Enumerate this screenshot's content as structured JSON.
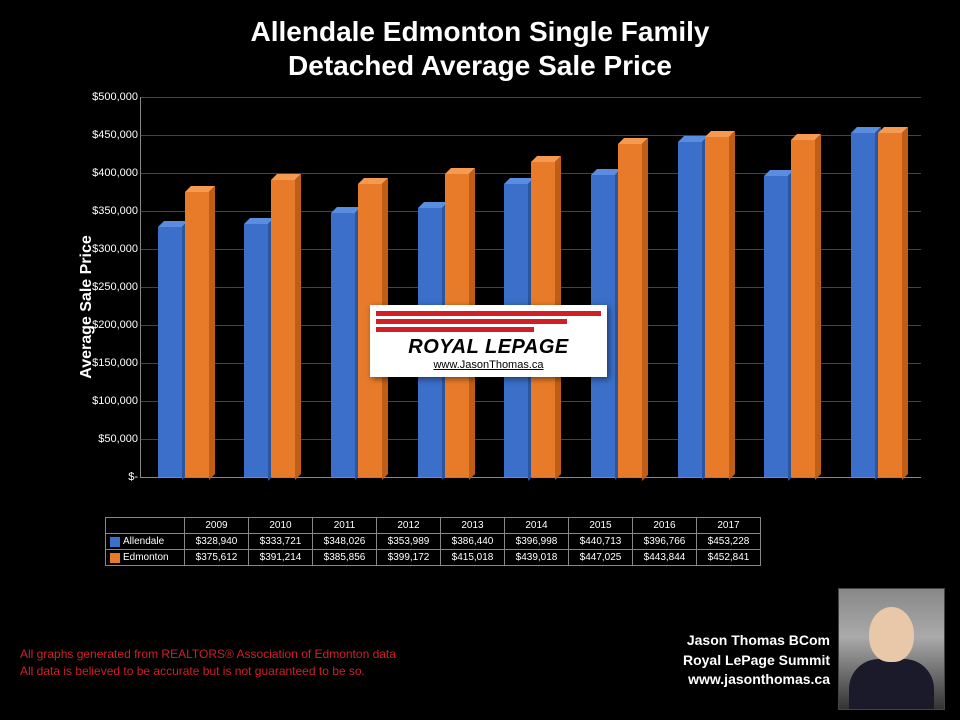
{
  "title_line1": "Allendale Edmonton Single Family",
  "title_line2": "Detached Average Sale Price",
  "y_axis_label": "Average Sale Price",
  "y_ticks": [
    "$-",
    "$50,000",
    "$100,000",
    "$150,000",
    "$200,000",
    "$250,000",
    "$300,000",
    "$350,000",
    "$400,000",
    "$450,000",
    "$500,000"
  ],
  "y_max": 500000,
  "y_step": 50000,
  "years": [
    "2009",
    "2010",
    "2011",
    "2012",
    "2013",
    "2014",
    "2015",
    "2016",
    "2017"
  ],
  "series": [
    {
      "name": "Allendale",
      "color": "#3b6fc9",
      "color_top": "#5a8de0",
      "color_side": "#2a55a0",
      "values": [
        328940,
        333721,
        348026,
        353989,
        386440,
        396998,
        440713,
        396766,
        453228
      ],
      "labels": [
        "$328,940",
        "$333,721",
        "$348,026",
        "$353,989",
        "$386,440",
        "$396,998",
        "$440,713",
        "$396,766",
        "$453,228"
      ]
    },
    {
      "name": "Edmonton",
      "color": "#e87b2a",
      "color_top": "#f59a50",
      "color_side": "#c05e15",
      "values": [
        375612,
        391214,
        385856,
        399172,
        415018,
        439018,
        447025,
        443844,
        452841
      ],
      "labels": [
        "$375,612",
        "$391,214",
        "$385,856",
        "$399,172",
        "$415,018",
        "$439,018",
        "$447,025",
        "$443,844",
        "$452,841"
      ]
    }
  ],
  "watermark": {
    "brand": "ROYAL LEPAGE",
    "url": "www.JasonThomas.ca"
  },
  "footer_line1": "All graphs generated from REALTORS® Association of Edmonton data",
  "footer_line2": "All data is believed to be accurate but is not guaranteed to be so.",
  "author_name": "Jason Thomas BCom",
  "author_company": "Royal LePage Summit",
  "author_url": "www.jasonthomas.ca",
  "colors": {
    "background": "#000000",
    "text": "#ffffff",
    "footer": "#d21f26",
    "grid": "#444444"
  }
}
